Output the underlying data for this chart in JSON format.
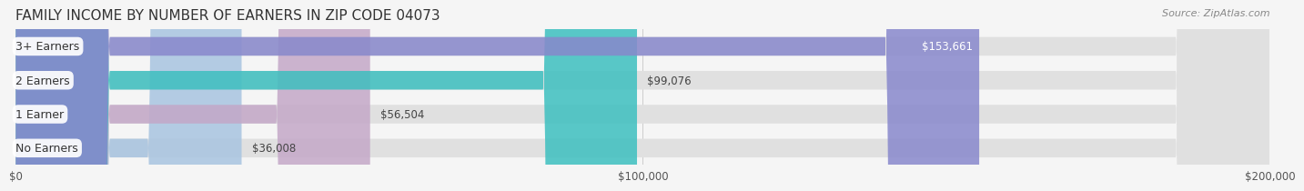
{
  "title": "FAMILY INCOME BY NUMBER OF EARNERS IN ZIP CODE 04073",
  "source": "Source: ZipAtlas.com",
  "categories": [
    "No Earners",
    "1 Earner",
    "2 Earners",
    "3+ Earners"
  ],
  "values": [
    36008,
    56504,
    99076,
    153661
  ],
  "labels": [
    "$36,008",
    "$56,504",
    "$99,076",
    "$153,661"
  ],
  "bar_colors": [
    "#a8c4e0",
    "#c4a8c8",
    "#3dbfbf",
    "#8888cc"
  ],
  "bar_bg_color": "#e8e8e8",
  "background_color": "#f5f5f5",
  "xlim": [
    0,
    200000
  ],
  "xticks": [
    0,
    100000,
    200000
  ],
  "xtick_labels": [
    "$0",
    "$100,000",
    "$200,000"
  ],
  "title_fontsize": 11,
  "source_fontsize": 8,
  "label_fontsize": 9,
  "bar_height": 0.55,
  "bar_gap": 0.18
}
